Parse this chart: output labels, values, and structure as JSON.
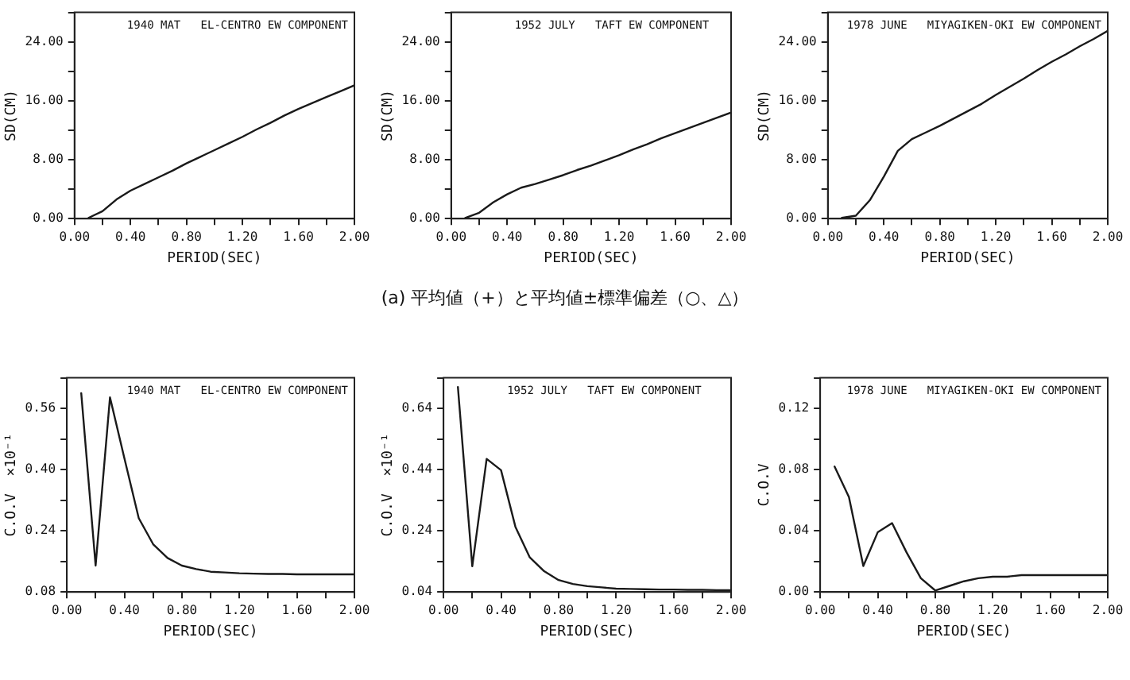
{
  "chart_data": [
    {
      "type": "line",
      "title": "1940 MAT   EL-CENTRO EW COMPONENT",
      "xlabel": "PERIOD(SEC)",
      "ylabel": "SD(CM)",
      "annotations": [
        "(a) 平均値（+）と平均値±標準偏差（○、△）"
      ],
      "x": [
        0.1,
        0.2,
        0.3,
        0.4,
        0.5,
        0.6,
        0.7,
        0.8,
        0.9,
        1.0,
        1.1,
        1.2,
        1.3,
        1.4,
        1.5,
        1.6,
        1.7,
        1.8,
        1.9,
        2.0
      ],
      "series": [
        {
          "color": "#1a1a1a",
          "values": [
            0.1,
            1.0,
            2.6,
            3.8,
            4.7,
            5.6,
            6.5,
            7.5,
            8.4,
            9.3,
            10.2,
            11.1,
            12.1,
            13.0,
            14.0,
            14.9,
            15.7,
            16.5,
            17.3,
            18.1
          ]
        }
      ],
      "xlim": [
        0,
        2
      ],
      "xticks": [
        {
          "value": 0,
          "label": "0.00"
        },
        {
          "value": 0.2,
          "label": null
        },
        {
          "value": 0.4,
          "label": "0.40"
        },
        {
          "value": 0.6,
          "label": null
        },
        {
          "value": 0.8,
          "label": "0.80"
        },
        {
          "value": 1.0,
          "label": null
        },
        {
          "value": 1.2,
          "label": "1.20"
        },
        {
          "value": 1.4,
          "label": null
        },
        {
          "value": 1.6,
          "label": "1.60"
        },
        {
          "value": 1.8,
          "label": null
        },
        {
          "value": 2,
          "label": "2.00"
        }
      ],
      "ylim": [
        0,
        28
      ],
      "yticks": [
        {
          "value": 0,
          "label": "0.00"
        },
        {
          "value": 4,
          "label": null
        },
        {
          "value": 8,
          "label": "8.00"
        },
        {
          "value": 12,
          "label": null
        },
        {
          "value": 16,
          "label": "16.00"
        },
        {
          "value": 20,
          "label": null
        },
        {
          "value": 24,
          "label": "24.00"
        },
        {
          "value": 28,
          "label": null
        }
      ]
    },
    {
      "type": "line",
      "title": "1952 JULY   TAFT EW COMPONENT",
      "xlabel": "PERIOD(SEC)",
      "ylabel": "SD(CM)",
      "x": [
        0.1,
        0.2,
        0.3,
        0.4,
        0.5,
        0.6,
        0.7,
        0.8,
        0.9,
        1.0,
        1.1,
        1.2,
        1.3,
        1.4,
        1.5,
        1.6,
        1.7,
        1.8,
        1.9,
        2.0
      ],
      "series": [
        {
          "color": "#1a1a1a",
          "values": [
            0.1,
            0.8,
            2.2,
            3.3,
            4.2,
            4.7,
            5.3,
            5.9,
            6.6,
            7.2,
            7.9,
            8.6,
            9.4,
            10.1,
            10.9,
            11.6,
            12.3,
            13.0,
            13.7,
            14.4
          ]
        }
      ],
      "xlim": [
        0,
        2
      ],
      "xticks": [
        {
          "value": 0,
          "label": "0.00"
        },
        {
          "value": 0.2,
          "label": null
        },
        {
          "value": 0.4,
          "label": "0.40"
        },
        {
          "value": 0.6,
          "label": null
        },
        {
          "value": 0.8,
          "label": "0.80"
        },
        {
          "value": 1.0,
          "label": null
        },
        {
          "value": 1.2,
          "label": "1.20"
        },
        {
          "value": 1.4,
          "label": null
        },
        {
          "value": 1.6,
          "label": "1.60"
        },
        {
          "value": 1.8,
          "label": null
        },
        {
          "value": 2,
          "label": "2.00"
        }
      ],
      "ylim": [
        0,
        28
      ],
      "yticks": [
        {
          "value": 0,
          "label": "0.00"
        },
        {
          "value": 4,
          "label": null
        },
        {
          "value": 8,
          "label": "8.00"
        },
        {
          "value": 12,
          "label": null
        },
        {
          "value": 16,
          "label": "16.00"
        },
        {
          "value": 20,
          "label": null
        },
        {
          "value": 24,
          "label": "24.00"
        },
        {
          "value": 28,
          "label": null
        }
      ]
    },
    {
      "type": "line",
      "title": "1978 JUNE   MIYAGIKEN-OKI EW COMPONENT",
      "xlabel": "PERIOD(SEC)",
      "ylabel": "SD(CM)",
      "x": [
        0.1,
        0.2,
        0.3,
        0.4,
        0.5,
        0.6,
        0.7,
        0.8,
        0.9,
        1.0,
        1.1,
        1.2,
        1.3,
        1.4,
        1.5,
        1.6,
        1.7,
        1.8,
        1.9,
        2.0
      ],
      "series": [
        {
          "color": "#1a1a1a",
          "values": [
            0.1,
            0.4,
            2.5,
            5.7,
            9.2,
            10.8,
            11.7,
            12.6,
            13.6,
            14.6,
            15.6,
            16.8,
            17.9,
            19.0,
            20.2,
            21.3,
            22.3,
            23.4,
            24.4,
            25.5
          ]
        }
      ],
      "xlim": [
        0,
        2
      ],
      "xticks": [
        {
          "value": 0,
          "label": "0.00"
        },
        {
          "value": 0.2,
          "label": null
        },
        {
          "value": 0.4,
          "label": "0.40"
        },
        {
          "value": 0.6,
          "label": null
        },
        {
          "value": 0.8,
          "label": "0.80"
        },
        {
          "value": 1.0,
          "label": null
        },
        {
          "value": 1.2,
          "label": "1.20"
        },
        {
          "value": 1.4,
          "label": null
        },
        {
          "value": 1.6,
          "label": "1.60"
        },
        {
          "value": 1.8,
          "label": null
        },
        {
          "value": 2,
          "label": "2.00"
        }
      ],
      "ylim": [
        0,
        28
      ],
      "yticks": [
        {
          "value": 0,
          "label": "0.00"
        },
        {
          "value": 4,
          "label": null
        },
        {
          "value": 8,
          "label": "8.00"
        },
        {
          "value": 12,
          "label": null
        },
        {
          "value": 16,
          "label": "16.00"
        },
        {
          "value": 20,
          "label": null
        },
        {
          "value": 24,
          "label": "24.00"
        },
        {
          "value": 28,
          "label": null
        }
      ]
    },
    {
      "type": "line",
      "title": "1940 MAT   EL-CENTRO EW COMPONENT",
      "xlabel": "PERIOD(SEC)",
      "ylabel": "C.O.V  ×10⁻¹",
      "x": [
        0.1,
        0.2,
        0.3,
        0.4,
        0.5,
        0.6,
        0.7,
        0.8,
        0.9,
        1.0,
        1.1,
        1.2,
        1.3,
        1.4,
        1.5,
        1.6,
        1.7,
        1.8,
        1.9,
        2.0
      ],
      "series": [
        {
          "color": "#1a1a1a",
          "values": [
            0.6,
            0.149,
            0.589,
            0.43,
            0.273,
            0.205,
            0.169,
            0.149,
            0.14,
            0.133,
            0.131,
            0.129,
            0.128,
            0.127,
            0.127,
            0.126,
            0.126,
            0.126,
            0.126,
            0.126
          ]
        }
      ],
      "xlim": [
        0,
        2
      ],
      "xticks": [
        {
          "value": 0,
          "label": "0.00"
        },
        {
          "value": 0.2,
          "label": null
        },
        {
          "value": 0.4,
          "label": "0.40"
        },
        {
          "value": 0.6,
          "label": null
        },
        {
          "value": 0.8,
          "label": "0.80"
        },
        {
          "value": 1.0,
          "label": null
        },
        {
          "value": 1.2,
          "label": "1.20"
        },
        {
          "value": 1.4,
          "label": null
        },
        {
          "value": 1.6,
          "label": "1.60"
        },
        {
          "value": 1.8,
          "label": null
        },
        {
          "value": 2,
          "label": "2.00"
        }
      ],
      "ylim": [
        0.08,
        0.64
      ],
      "yticks": [
        {
          "value": 0.08,
          "label": "0.08"
        },
        {
          "value": 0.16,
          "label": null
        },
        {
          "value": 0.24,
          "label": "0.24"
        },
        {
          "value": 0.32,
          "label": null
        },
        {
          "value": 0.4,
          "label": "0.40"
        },
        {
          "value": 0.48,
          "label": null
        },
        {
          "value": 0.56,
          "label": "0.56"
        },
        {
          "value": 0.64,
          "label": null
        }
      ]
    },
    {
      "type": "line",
      "title": "1952 JULY   TAFT EW COMPONENT",
      "xlabel": "PERIOD(SEC)",
      "ylabel": "C.O.V  ×10⁻¹",
      "x": [
        0.1,
        0.2,
        0.3,
        0.4,
        0.5,
        0.6,
        0.7,
        0.8,
        0.9,
        1.0,
        1.1,
        1.2,
        1.3,
        1.4,
        1.5,
        1.6,
        1.7,
        1.8,
        1.9,
        2.0
      ],
      "series": [
        {
          "color": "#1a1a1a",
          "values": [
            0.71,
            0.124,
            0.475,
            0.438,
            0.253,
            0.153,
            0.108,
            0.079,
            0.066,
            0.059,
            0.055,
            0.051,
            0.05,
            0.049,
            0.048,
            0.048,
            0.047,
            0.047,
            0.046,
            0.046
          ]
        }
      ],
      "xlim": [
        0,
        2
      ],
      "xticks": [
        {
          "value": 0,
          "label": "0.00"
        },
        {
          "value": 0.2,
          "label": null
        },
        {
          "value": 0.4,
          "label": "0.40"
        },
        {
          "value": 0.6,
          "label": null
        },
        {
          "value": 0.8,
          "label": "0.80"
        },
        {
          "value": 1.0,
          "label": null
        },
        {
          "value": 1.2,
          "label": "1.20"
        },
        {
          "value": 1.4,
          "label": null
        },
        {
          "value": 1.6,
          "label": "1.60"
        },
        {
          "value": 1.8,
          "label": null
        },
        {
          "value": 2,
          "label": "2.00"
        }
      ],
      "ylim": [
        0.04,
        0.74
      ],
      "yticks": [
        {
          "value": 0.04,
          "label": "0.04"
        },
        {
          "value": 0.14,
          "label": null
        },
        {
          "value": 0.24,
          "label": "0.24"
        },
        {
          "value": 0.34,
          "label": null
        },
        {
          "value": 0.44,
          "label": "0.44"
        },
        {
          "value": 0.54,
          "label": null
        },
        {
          "value": 0.64,
          "label": "0.64"
        },
        {
          "value": 0.74,
          "label": null
        }
      ]
    },
    {
      "type": "line",
      "title": "1978 JUNE   MIYAGIKEN-OKI EW COMPONENT",
      "xlabel": "PERIOD(SEC)",
      "ylabel": "C.O.V",
      "x": [
        0.1,
        0.2,
        0.3,
        0.4,
        0.5,
        0.6,
        0.7,
        0.8,
        0.9,
        1.0,
        1.1,
        1.2,
        1.3,
        1.4,
        1.5,
        1.6,
        1.7,
        1.8,
        1.9,
        2.0
      ],
      "series": [
        {
          "color": "#1a1a1a",
          "values": [
            0.082,
            0.062,
            0.017,
            0.039,
            0.045,
            0.026,
            0.009,
            0.001,
            0.004,
            0.007,
            0.009,
            0.01,
            0.01,
            0.011,
            0.011,
            0.011,
            0.011,
            0.011,
            0.011,
            0.011
          ]
        }
      ],
      "xlim": [
        0,
        2
      ],
      "xticks": [
        {
          "value": 0,
          "label": "0.00"
        },
        {
          "value": 0.2,
          "label": null
        },
        {
          "value": 0.4,
          "label": "0.40"
        },
        {
          "value": 0.6,
          "label": null
        },
        {
          "value": 0.8,
          "label": "0.80"
        },
        {
          "value": 1.0,
          "label": null
        },
        {
          "value": 1.2,
          "label": "1.20"
        },
        {
          "value": 1.4,
          "label": null
        },
        {
          "value": 1.6,
          "label": "1.60"
        },
        {
          "value": 1.8,
          "label": null
        },
        {
          "value": 2,
          "label": "2.00"
        }
      ],
      "ylim": [
        0,
        0.14
      ],
      "yticks": [
        {
          "value": 0,
          "label": "0.00"
        },
        {
          "value": 0.02,
          "label": null
        },
        {
          "value": 0.04,
          "label": "0.04"
        },
        {
          "value": 0.06,
          "label": null
        },
        {
          "value": 0.08,
          "label": "0.08"
        },
        {
          "value": 0.1,
          "label": null
        },
        {
          "value": 0.12,
          "label": "0.12"
        },
        {
          "value": 0.14,
          "label": null
        }
      ]
    }
  ]
}
